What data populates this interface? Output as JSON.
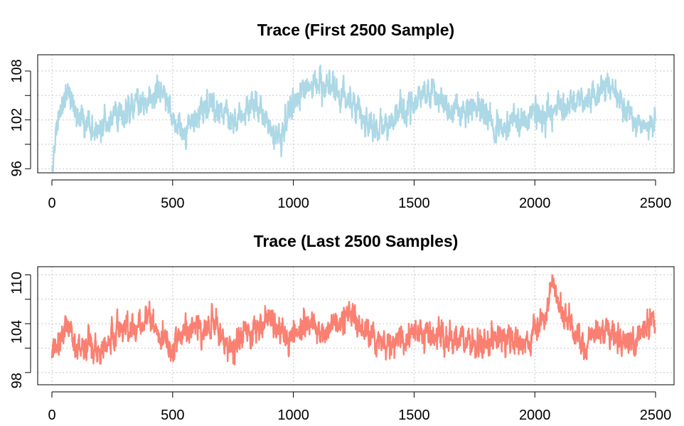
{
  "chart_data": [
    {
      "type": "line",
      "title": "Trace (First 2500 Sample)",
      "xlabel": "",
      "ylabel": "",
      "xlim": [
        0,
        2500
      ],
      "ylim": [
        95.5,
        110
      ],
      "x_ticks": [
        "0",
        "500",
        "1000",
        "1500",
        "2000",
        "2500"
      ],
      "y_ticks": [
        "96",
        "102",
        "108"
      ],
      "grid": true,
      "series": [
        {
          "color": "#ADD8E6",
          "n_samples": 2500,
          "x": [
            0,
            25,
            50,
            75,
            100,
            150,
            200,
            250,
            300,
            350,
            400,
            450,
            500,
            550,
            600,
            650,
            700,
            750,
            800,
            850,
            900,
            950,
            1000,
            1050,
            1100,
            1150,
            1200,
            1250,
            1300,
            1350,
            1400,
            1450,
            1500,
            1550,
            1600,
            1650,
            1700,
            1750,
            1800,
            1850,
            1900,
            1950,
            2000,
            2050,
            2100,
            2150,
            2200,
            2250,
            2300,
            2350,
            2400,
            2450,
            2500
          ],
          "values": [
            97,
            101.5,
            104,
            105,
            103,
            101,
            100.5,
            102,
            103,
            104,
            104.5,
            106,
            102,
            101,
            102.5,
            104,
            103,
            102,
            103,
            104,
            101,
            100,
            104,
            105.5,
            106,
            106.5,
            104.5,
            104,
            102,
            101,
            101.5,
            103,
            104,
            105.5,
            105,
            103,
            102.5,
            103.5,
            102.5,
            101,
            102,
            101.5,
            103,
            102.5,
            103.5,
            104,
            104.5,
            105,
            106,
            104.5,
            102,
            101,
            101.5
          ]
        }
      ]
    },
    {
      "type": "line",
      "title": "Trace (Last 2500 Samples)",
      "xlabel": "",
      "ylabel": "",
      "xlim": [
        0,
        2500
      ],
      "ylim": [
        97.5,
        112
      ],
      "x_ticks": [
        "0",
        "500",
        "1000",
        "1500",
        "2000",
        "2500"
      ],
      "y_ticks": [
        "98",
        "104",
        "110"
      ],
      "grid": true,
      "series": [
        {
          "color": "#FA8072",
          "n_samples": 2500,
          "x": [
            0,
            25,
            50,
            75,
            100,
            150,
            200,
            250,
            300,
            350,
            400,
            450,
            500,
            550,
            600,
            650,
            700,
            750,
            800,
            850,
            900,
            950,
            1000,
            1050,
            1100,
            1150,
            1200,
            1250,
            1300,
            1350,
            1400,
            1450,
            1500,
            1550,
            1600,
            1650,
            1700,
            1750,
            1800,
            1850,
            1900,
            1950,
            2000,
            2050,
            2075,
            2100,
            2150,
            2200,
            2250,
            2300,
            2350,
            2400,
            2450,
            2500
          ],
          "values": [
            101,
            103,
            104,
            104.5,
            102,
            103,
            101,
            104,
            104.5,
            104,
            106.5,
            103.5,
            102,
            103.5,
            104.5,
            105,
            104,
            101.5,
            104,
            104.5,
            106,
            104,
            103.5,
            105,
            103.5,
            104,
            105.5,
            106,
            103.5,
            103,
            102.5,
            103.5,
            104,
            103.5,
            104,
            103,
            103.5,
            102.5,
            102.5,
            104,
            103.5,
            102.5,
            104,
            106.5,
            110,
            107,
            104.5,
            102.5,
            104,
            104,
            103,
            102.5,
            104,
            105.5
          ]
        }
      ]
    }
  ]
}
